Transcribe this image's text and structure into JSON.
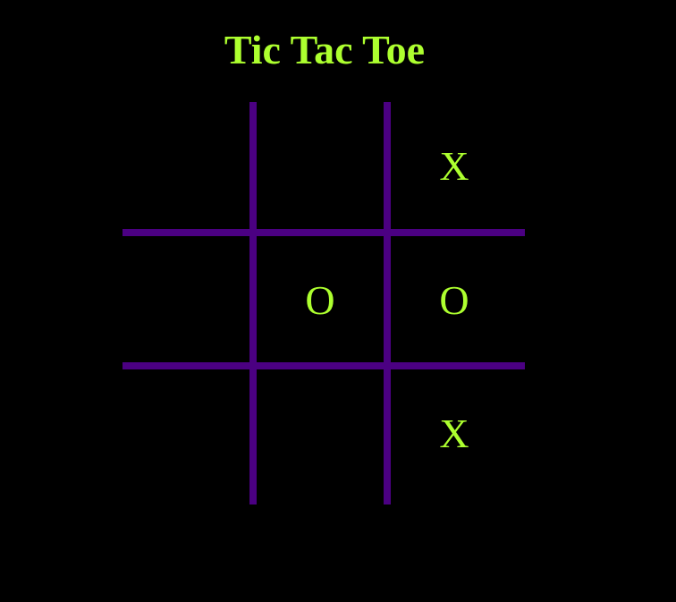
{
  "title": "Tic Tac Toe",
  "colors": {
    "background": "#000000",
    "grid_lines": "#4b0082",
    "marks": "#adff2f",
    "title": "#adff2f"
  },
  "board": {
    "cells": [
      "",
      "",
      "X",
      "",
      "O",
      "O",
      "",
      "",
      "X"
    ]
  }
}
